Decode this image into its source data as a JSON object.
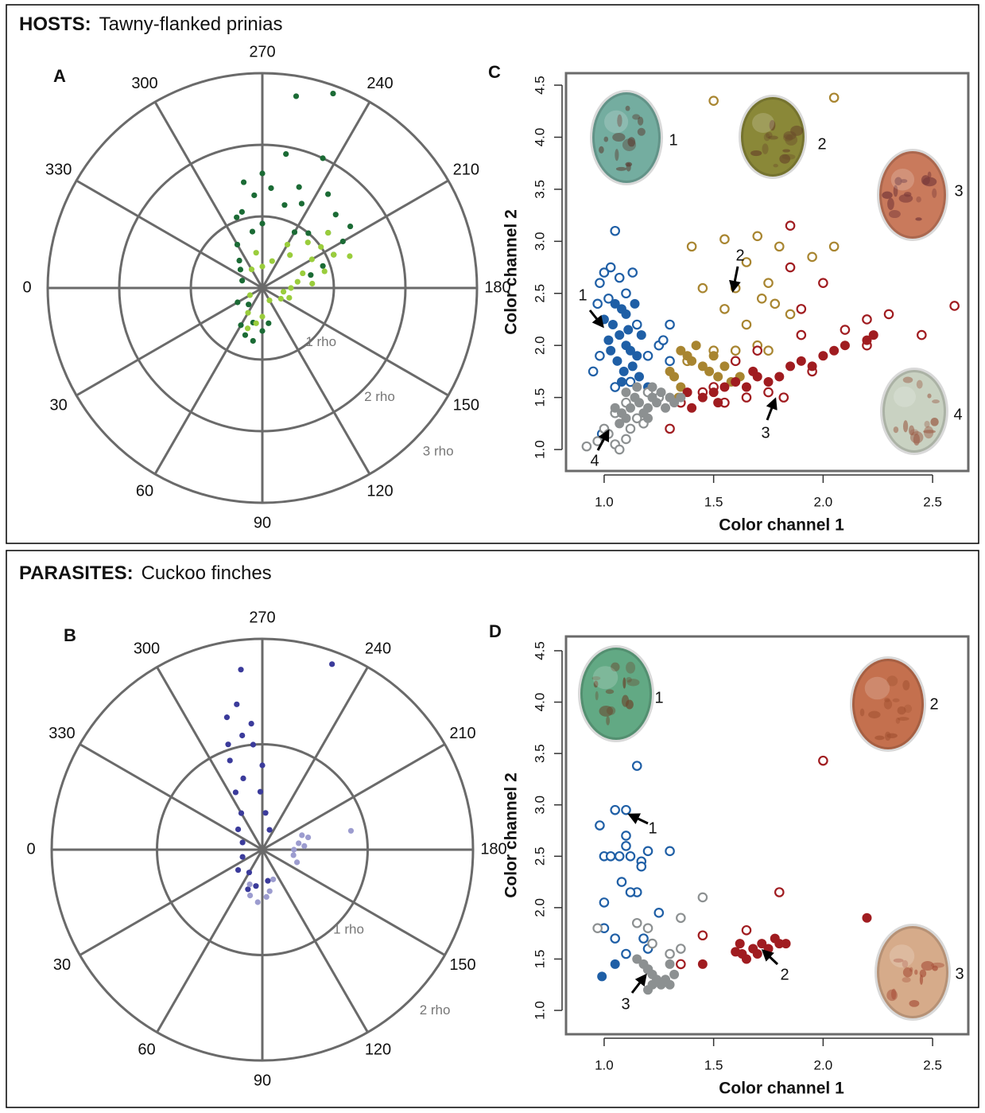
{
  "panels": [
    {
      "group": "HOSTS:",
      "species": "Tawny-flanked prinias"
    },
    {
      "group": "PARASITES:",
      "species": "Cuckoo finches"
    }
  ],
  "chart_data": [
    {
      "type": "polar",
      "panel": "A",
      "thetaticks": [
        0,
        30,
        60,
        90,
        120,
        150,
        180,
        210,
        240,
        270,
        300,
        330
      ],
      "rlim": [
        0,
        3
      ],
      "rticks": [
        {
          "value": 1,
          "label": "1 rho"
        },
        {
          "value": 2,
          "label": "2 rho"
        },
        {
          "value": 3,
          "label": "3 rho"
        }
      ],
      "series": [
        {
          "color": "#1b6b35",
          "theta": [
            260,
            250,
            285,
            290,
            275,
            265,
            250,
            245,
            235,
            225,
            215,
            210,
            205,
            230,
            240,
            255,
            270,
            280,
            300,
            310,
            320,
            340,
            30,
            60,
            70,
            80,
            90,
            100,
            75,
            50,
            200,
            195,
            220,
            260,
            245,
            270,
            280
          ],
          "r": [
            2.72,
            2.89,
            1.1,
            1.05,
            1.3,
            1.4,
            1.5,
            1.3,
            1.6,
            1.45,
            1.5,
            1.3,
            1.1,
            1.0,
            0.9,
            1.2,
            0.9,
            0.8,
            0.7,
            0.5,
            0.4,
            0.3,
            0.4,
            0.6,
            0.7,
            0.75,
            0.6,
            0.5,
            0.5,
            0.3,
            0.9,
            0.7,
            1.2,
            1.9,
            2.0,
            1.6,
            1.5
          ]
        },
        {
          "color": "#9acd3c",
          "theta": [
            200,
            190,
            180,
            170,
            210,
            215,
            205,
            220,
            225,
            195,
            185,
            160,
            150,
            120,
            90,
            80,
            70,
            60,
            30,
            300,
            280,
            270,
            250,
            230,
            240,
            200
          ],
          "r": [
            0.6,
            0.5,
            0.4,
            0.3,
            0.8,
            1.0,
            1.1,
            1.2,
            0.9,
            0.9,
            0.7,
            0.4,
            0.3,
            0.2,
            0.4,
            0.5,
            0.6,
            0.4,
            0.2,
            0.3,
            0.5,
            0.3,
            0.4,
            0.6,
            0.7,
            1.3
          ]
        }
      ]
    },
    {
      "type": "polar",
      "panel": "B",
      "thetaticks": [
        0,
        30,
        60,
        90,
        120,
        150,
        180,
        210,
        240,
        270,
        300,
        330
      ],
      "rlim": [
        0,
        2
      ],
      "rticks": [
        {
          "value": 1,
          "label": "1 rho"
        },
        {
          "value": 2,
          "label": "2 rho"
        }
      ],
      "series": [
        {
          "color": "#3b3b9b",
          "theta": [
            276.8,
            249.4,
            285,
            280,
            275,
            290,
            270,
            285,
            295,
            300,
            320,
            340,
            280,
            275,
            288,
            272,
            265,
            250,
            20,
            40,
            60,
            70,
            80,
            100
          ],
          "r": [
            1.72,
            1.88,
            1.3,
            1.1,
            1.0,
            0.9,
            0.8,
            0.7,
            0.6,
            0.4,
            0.3,
            0.2,
            1.4,
            1.2,
            1.05,
            0.55,
            0.35,
            0.2,
            0.2,
            0.3,
            0.25,
            0.4,
            0.35,
            0.3
          ]
        },
        {
          "color": "#9c9ccf",
          "theta": [
            192,
            200,
            195,
            190,
            185,
            170,
            160,
            180,
            100,
            95,
            85,
            75,
            70,
            110
          ],
          "r": [
            0.86,
            0.4,
            0.45,
            0.35,
            0.4,
            0.3,
            0.35,
            0.3,
            0.4,
            0.45,
            0.5,
            0.45,
            0.35,
            0.3
          ]
        }
      ]
    },
    {
      "type": "scatter",
      "panel": "C",
      "xlabel": "Color channel 1",
      "ylabel": "Color channel 2",
      "xlim": [
        0.826,
        2.663
      ],
      "ylim": [
        0.794,
        4.615
      ],
      "xticks": [
        {
          "value": 1,
          "label": "1.0"
        },
        {
          "value": 1.5,
          "label": "1.5"
        },
        {
          "value": 2,
          "label": "2.0"
        },
        {
          "value": 2.5,
          "label": "2.5"
        }
      ],
      "yticks": [
        {
          "value": 1,
          "label": "1.0"
        },
        {
          "value": 1.5,
          "label": "1.5"
        },
        {
          "value": 2,
          "label": "2.0"
        },
        {
          "value": 2.5,
          "label": "2.5"
        },
        {
          "value": 3,
          "label": "3.0"
        },
        {
          "value": 3.5,
          "label": "3.5"
        },
        {
          "value": 4,
          "label": "4.0"
        },
        {
          "value": 4.5,
          "label": "4.5"
        }
      ],
      "image_labels": [
        "1",
        "2",
        "3",
        "4"
      ],
      "arrow_labels": [
        "1",
        "2",
        "3",
        "4"
      ],
      "series": [
        {
          "color": "#1f5fa6",
          "marker": "open",
          "x": [
            1.05,
            1.03,
            1.0,
            0.98,
            1.07,
            1.1,
            1.13,
            0.97,
            1.02,
            1.15,
            0.95,
            0.98,
            1.05,
            1.2,
            1.25,
            1.27,
            1.3,
            1.3,
            0.99,
            1.12
          ],
          "y": [
            3.1,
            2.75,
            2.7,
            2.6,
            2.65,
            2.5,
            2.7,
            2.4,
            2.45,
            2.2,
            1.75,
            1.9,
            1.6,
            1.9,
            2.0,
            2.05,
            2.2,
            1.85,
            1.15,
            1.65
          ]
        },
        {
          "color": "#1f5fa6",
          "marker": "filled",
          "x": [
            1.05,
            1.08,
            1.1,
            1.04,
            1.07,
            1.1,
            1.12,
            1.15,
            1.02,
            1.06,
            1.09,
            1.13,
            1.17,
            1.11,
            1.03,
            1.08,
            1.16,
            1.2,
            1.14,
            1.0
          ],
          "y": [
            2.4,
            2.35,
            2.3,
            2.2,
            2.1,
            2.0,
            1.95,
            1.9,
            2.05,
            1.85,
            1.75,
            1.8,
            2.1,
            2.15,
            1.95,
            1.65,
            1.7,
            1.6,
            2.4,
            2.25
          ]
        },
        {
          "color": "#a88530",
          "marker": "open",
          "x": [
            1.5,
            2.05,
            1.4,
            1.55,
            1.7,
            1.8,
            2.05,
            1.95,
            1.65,
            1.75,
            1.45,
            1.6,
            1.72,
            1.78,
            1.85,
            1.55,
            1.65,
            1.7,
            1.6,
            1.75,
            1.38,
            1.5
          ],
          "y": [
            4.35,
            4.38,
            2.95,
            3.02,
            3.05,
            2.95,
            2.95,
            2.85,
            2.8,
            2.6,
            2.55,
            2.55,
            2.45,
            2.4,
            2.3,
            2.35,
            2.2,
            2.0,
            1.95,
            1.95,
            1.85,
            1.95
          ]
        },
        {
          "color": "#a88530",
          "marker": "filled",
          "x": [
            1.35,
            1.38,
            1.4,
            1.42,
            1.45,
            1.48,
            1.5,
            1.52,
            1.55,
            1.58,
            1.62,
            1.35,
            1.32,
            1.34,
            1.3
          ],
          "y": [
            1.95,
            1.9,
            1.85,
            2.0,
            1.8,
            1.75,
            1.9,
            1.7,
            1.8,
            1.65,
            1.7,
            1.6,
            1.7,
            1.5,
            1.75
          ]
        },
        {
          "color": "#a01c20",
          "marker": "open",
          "x": [
            1.85,
            1.85,
            2.0,
            1.9,
            2.2,
            2.3,
            2.6,
            2.45,
            2.2,
            2.1,
            1.9,
            1.7,
            1.6,
            1.5,
            1.45,
            1.65,
            1.75,
            1.82,
            1.3,
            1.35,
            1.55,
            1.95
          ],
          "y": [
            3.15,
            2.75,
            2.6,
            2.35,
            2.25,
            2.3,
            2.38,
            2.1,
            2.0,
            2.15,
            2.1,
            1.95,
            1.85,
            1.6,
            1.55,
            1.5,
            1.55,
            1.5,
            1.2,
            1.45,
            1.45,
            1.75
          ]
        },
        {
          "color": "#a01c20",
          "marker": "filled",
          "x": [
            1.4,
            1.45,
            1.5,
            1.55,
            1.6,
            1.65,
            1.7,
            1.75,
            1.8,
            1.85,
            1.9,
            1.95,
            2.0,
            2.05,
            2.1,
            2.2,
            2.23,
            1.68,
            1.52,
            1.38
          ],
          "y": [
            1.4,
            1.5,
            1.55,
            1.6,
            1.65,
            1.6,
            1.7,
            1.65,
            1.7,
            1.8,
            1.85,
            1.8,
            1.9,
            1.95,
            2.0,
            2.05,
            2.1,
            1.75,
            1.45,
            1.55
          ]
        },
        {
          "color": "#8c9091",
          "marker": "open",
          "x": [
            0.92,
            0.97,
            1.0,
            1.02,
            1.05,
            1.07,
            1.1,
            1.12,
            1.15,
            1.18,
            1.05,
            1.1,
            1.2,
            1.25
          ],
          "y": [
            1.03,
            1.08,
            1.2,
            1.15,
            1.05,
            1.0,
            1.1,
            1.2,
            1.3,
            1.25,
            1.35,
            1.45,
            1.55,
            1.5
          ]
        },
        {
          "color": "#8c9091",
          "marker": "filled",
          "x": [
            1.05,
            1.08,
            1.1,
            1.12,
            1.14,
            1.16,
            1.18,
            1.2,
            1.22,
            1.24,
            1.26,
            1.28,
            1.3,
            1.32,
            1.15,
            1.1,
            1.2,
            1.07,
            1.35,
            1.22
          ],
          "y": [
            1.4,
            1.35,
            1.3,
            1.4,
            1.5,
            1.45,
            1.35,
            1.4,
            1.5,
            1.45,
            1.55,
            1.4,
            1.5,
            1.45,
            1.6,
            1.55,
            1.3,
            1.25,
            1.5,
            1.6
          ]
        }
      ]
    },
    {
      "type": "scatter",
      "panel": "D",
      "xlabel": "Color channel 1",
      "ylabel": "Color channel 2",
      "xlim": [
        0.826,
        2.663
      ],
      "ylim": [
        0.768,
        4.639
      ],
      "xticks": [
        {
          "value": 1,
          "label": "1.0"
        },
        {
          "value": 1.5,
          "label": "1.5"
        },
        {
          "value": 2,
          "label": "2.0"
        },
        {
          "value": 2.5,
          "label": "2.5"
        }
      ],
      "yticks": [
        {
          "value": 1,
          "label": "1.0"
        },
        {
          "value": 1.5,
          "label": "1.5"
        },
        {
          "value": 2,
          "label": "2.0"
        },
        {
          "value": 2.5,
          "label": "2.5"
        },
        {
          "value": 3,
          "label": "3.0"
        },
        {
          "value": 3.5,
          "label": "3.5"
        },
        {
          "value": 4,
          "label": "4.0"
        },
        {
          "value": 4.5,
          "label": "4.5"
        }
      ],
      "image_labels": [
        "1",
        "2",
        "3"
      ],
      "arrow_labels": [
        "1",
        "2",
        "3"
      ],
      "series": [
        {
          "color": "#1f5fa6",
          "marker": "open",
          "x": [
            1.15,
            1.1,
            1.05,
            0.98,
            1.1,
            1.1,
            1.0,
            1.03,
            1.07,
            1.12,
            1.2,
            1.3,
            1.17,
            1.17,
            1.08,
            1.15,
            1.12,
            1.0,
            1.25,
            1.0,
            1.05,
            1.18,
            1.1,
            1.2
          ],
          "y": [
            3.38,
            2.95,
            2.95,
            2.8,
            2.7,
            2.6,
            2.5,
            2.5,
            2.5,
            2.5,
            2.55,
            2.55,
            2.45,
            2.4,
            2.25,
            2.15,
            2.15,
            2.05,
            1.95,
            1.8,
            1.7,
            1.7,
            1.55,
            1.6
          ]
        },
        {
          "color": "#1f5fa6",
          "marker": "filled",
          "x": [
            0.99,
            1.05
          ],
          "y": [
            1.33,
            1.45
          ]
        },
        {
          "color": "#a01c20",
          "marker": "open",
          "x": [
            2.0,
            1.8,
            1.45,
            1.65,
            1.35
          ],
          "y": [
            3.43,
            2.15,
            1.73,
            1.78,
            1.45
          ]
        },
        {
          "color": "#a01c20",
          "marker": "filled",
          "x": [
            2.2,
            1.45,
            1.6,
            1.63,
            1.65,
            1.68,
            1.7,
            1.72,
            1.75,
            1.78,
            1.8,
            1.83,
            1.62
          ],
          "y": [
            1.9,
            1.45,
            1.57,
            1.55,
            1.5,
            1.6,
            1.55,
            1.65,
            1.6,
            1.7,
            1.65,
            1.65,
            1.65
          ]
        },
        {
          "color": "#8c9091",
          "marker": "open",
          "x": [
            0.97,
            1.15,
            1.2,
            1.35,
            1.45,
            1.22,
            1.3,
            1.35,
            1.2
          ],
          "y": [
            1.8,
            1.85,
            1.8,
            1.9,
            2.1,
            1.65,
            1.55,
            1.6,
            1.4
          ]
        },
        {
          "color": "#8c9091",
          "marker": "filled",
          "x": [
            1.15,
            1.18,
            1.2,
            1.22,
            1.24,
            1.26,
            1.28,
            1.3,
            1.32,
            1.22,
            1.2,
            1.3
          ],
          "y": [
            1.5,
            1.45,
            1.4,
            1.35,
            1.3,
            1.25,
            1.3,
            1.25,
            1.35,
            1.25,
            1.2,
            1.45
          ]
        }
      ]
    }
  ]
}
